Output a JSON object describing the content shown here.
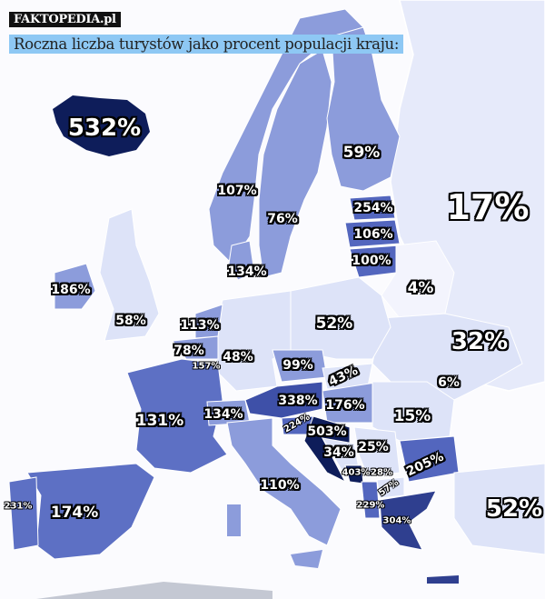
{
  "header": {
    "logo": "FAKTOPEDIA.pl",
    "title": "Roczna liczba turystów jako procent populacji kraju:"
  },
  "colors": {
    "sea": "#fbfbfe",
    "low": "#dde3f8",
    "medium": "#8c9cdb",
    "high": "#5366be",
    "very_high": "#0e1d5a",
    "title_bg": "#8ec8f4"
  },
  "labels": [
    "532%",
    "59%",
    "107%",
    "76%",
    "254%",
    "17%",
    "106%",
    "100%",
    "134%",
    "186%",
    "4%",
    "58%",
    "113%",
    "52%",
    "32%",
    "78%",
    "157%",
    "48%",
    "99%",
    "43%",
    "6%",
    "338%",
    "176%",
    "131%",
    "134%",
    "15%",
    "224%",
    "503%",
    "34%",
    "25%",
    "205%",
    "403%",
    "28%",
    "57%",
    "110%",
    "229%",
    "231%",
    "174%",
    "52%",
    "304%"
  ]
}
